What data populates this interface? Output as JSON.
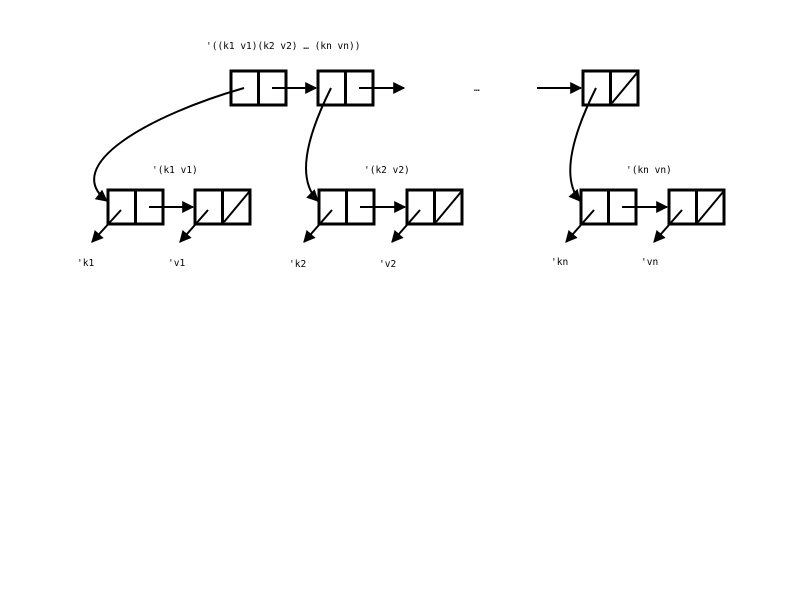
{
  "top_list": {
    "label": "'((k1 v1)(k2 v2) … (kn vn))",
    "ellipsis": "…"
  },
  "sublists": [
    {
      "label": "'(k1 v1)",
      "key": "'k1",
      "value": "'v1"
    },
    {
      "label": "'(k2 v2)",
      "key": "'k2",
      "value": "'v2"
    },
    {
      "label": "'(kn vn)",
      "key": "'kn",
      "value": "'vn"
    }
  ]
}
